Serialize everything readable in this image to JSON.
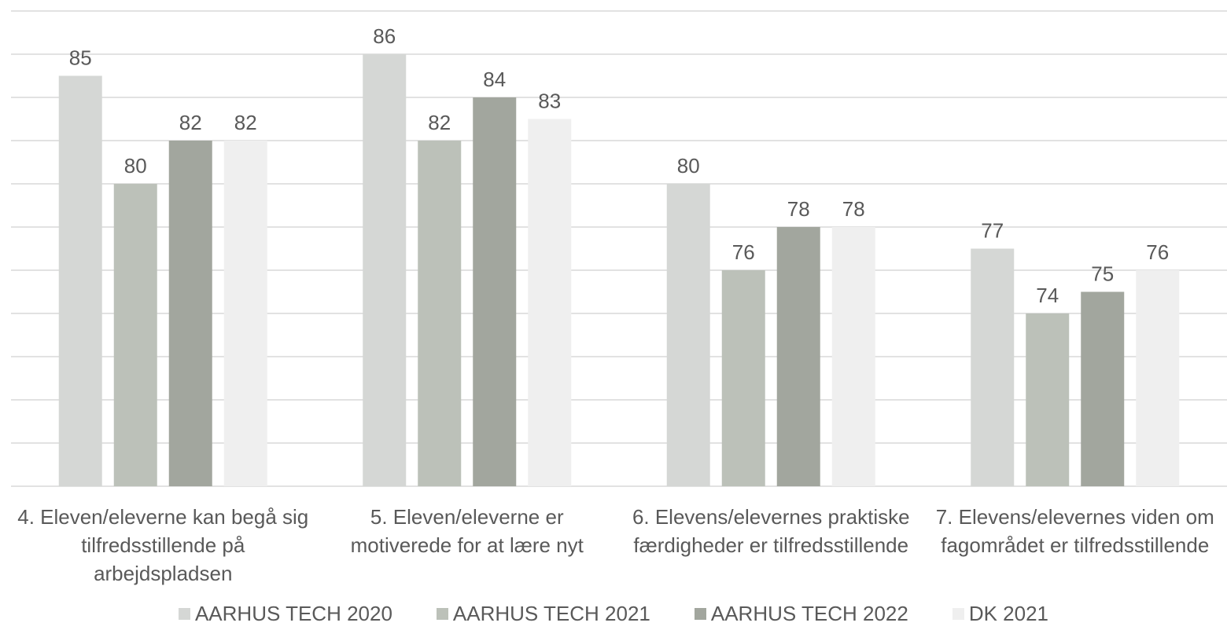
{
  "chart_data": {
    "type": "bar",
    "categories": [
      "4. Eleven/eleverne kan begå sig tilfredsstillende på arbejdspladsen",
      "5. Eleven/eleverne er motiverede for at lære nyt",
      "6. Elevens/elevernes praktiske færdigheder er tilfredsstillende",
      "7. Elevens/elevernes viden om fagområdet er tilfredsstillende"
    ],
    "series": [
      {
        "name": "AARHUS TECH 2020",
        "color": "#d5d7d5",
        "values": [
          85,
          86,
          80,
          77
        ]
      },
      {
        "name": "AARHUS TECH 2021",
        "color": "#bcc1b9",
        "values": [
          80,
          82,
          76,
          74
        ]
      },
      {
        "name": "AARHUS TECH 2022",
        "color": "#a2a69e",
        "values": [
          82,
          84,
          78,
          75
        ]
      },
      {
        "name": "DK 2021",
        "color": "#efefef",
        "values": [
          82,
          83,
          78,
          76
        ]
      }
    ],
    "ylim": [
      66,
      88
    ],
    "yticks": [
      66,
      68,
      70,
      72,
      74,
      76,
      78,
      80,
      82,
      84,
      86,
      88
    ],
    "grid": true,
    "legend": "bottom"
  }
}
